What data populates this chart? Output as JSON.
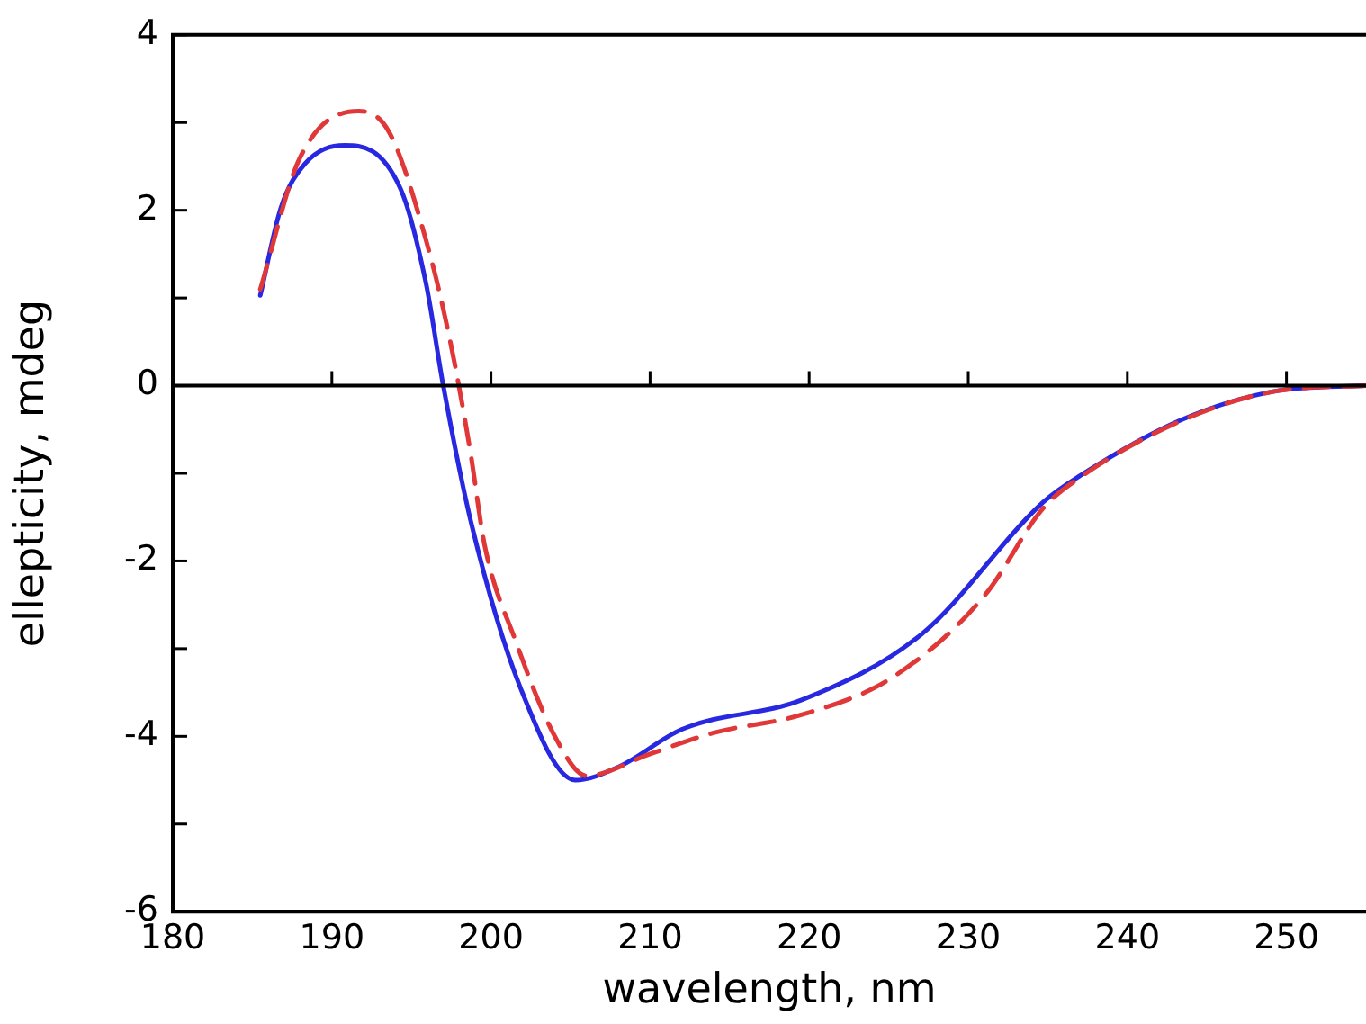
{
  "chart_data": {
    "type": "line",
    "xlabel": "wavelength, nm",
    "ylabel": "ellepticity, mdeg",
    "xlim": [
      180,
      255
    ],
    "xticks": [
      180,
      190,
      200,
      210,
      220,
      230,
      240,
      250
    ],
    "ylim": [
      -6,
      4
    ],
    "yticks": [
      -6,
      {
        "value": -5,
        "label": null
      },
      -4,
      {
        "value": -3,
        "label": null
      },
      -2,
      {
        "value": -1,
        "label": null
      },
      0,
      {
        "value": 1,
        "label": null
      },
      2,
      {
        "value": 3,
        "label": null
      },
      4
    ],
    "grid": false,
    "legend": false,
    "marker": "none",
    "ref_lines": [
      {
        "axis": "y",
        "value": 0,
        "color": "#000000",
        "line_style": "solid"
      }
    ],
    "series": [
      {
        "color": "#e03838",
        "line_style": "dashed",
        "x": [
          185.5,
          188,
          191.7,
          193.6,
          195.9,
          197.4,
          198.7,
          199.6,
          201.5,
          204.1,
          206,
          210,
          214,
          219.6,
          225.3,
          231,
          234.7,
          237,
          243.4,
          249.4,
          255
        ],
        "values": [
          1.1,
          2.6,
          3.13,
          2.89,
          1.67,
          0.54,
          -0.75,
          -1.82,
          -2.89,
          -4.03,
          -4.45,
          -4.2,
          -3.96,
          -3.75,
          -3.32,
          -2.4,
          -1.4,
          -1.05,
          -0.4,
          -0.06,
          0
        ]
      },
      {
        "color": "#2828e0",
        "line_style": "solid",
        "x": [
          185.5,
          186.8,
          188.3,
          190.8,
          194.3,
          195.9,
          197,
          198.8,
          201.9,
          205.3,
          208,
          212,
          219.6,
          227.1,
          234.7,
          237,
          243.4,
          249.4,
          255
        ],
        "values": [
          1.03,
          2.03,
          2.53,
          2.74,
          2.25,
          1.18,
          0,
          -1.6,
          -3.47,
          -4.5,
          -4.35,
          -3.92,
          -3.58,
          -2.83,
          -1.33,
          -1.03,
          -0.39,
          -0.06,
          0
        ]
      }
    ]
  }
}
